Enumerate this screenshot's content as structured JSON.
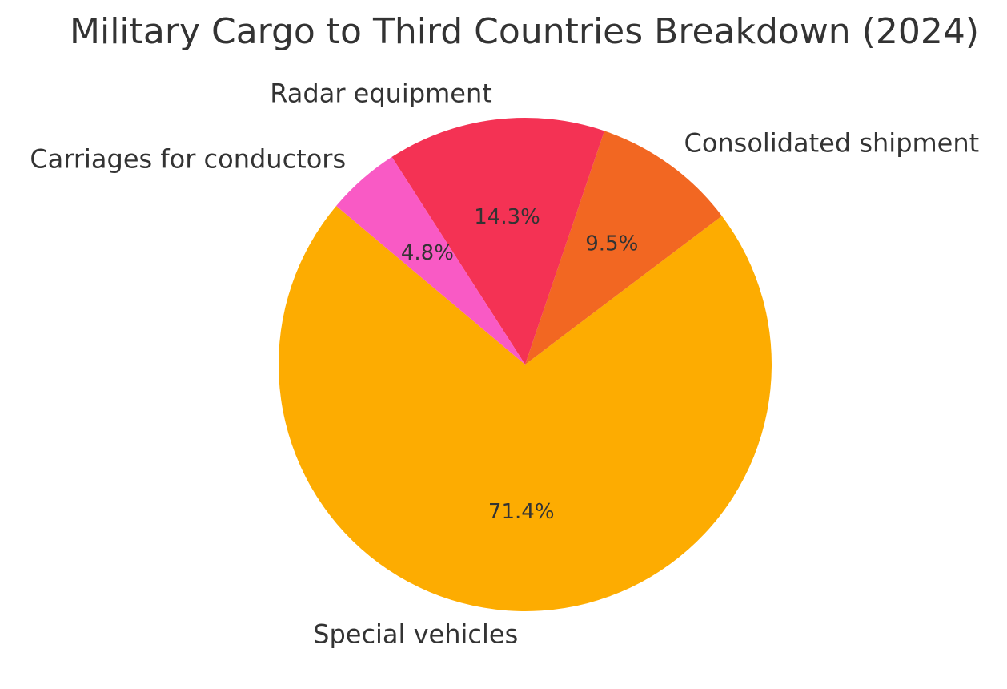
{
  "chart_data": {
    "type": "pie",
    "title": "Military Cargo to Third Countries Breakdown (2024)",
    "slices": [
      {
        "label": "Special vehicles",
        "value": 71.4,
        "pct_label": "71.4%",
        "color": "#FDAC01"
      },
      {
        "label": "Consolidated shipment",
        "value": 9.5,
        "pct_label": "9.5%",
        "color": "#F26722"
      },
      {
        "label": "Radar equipment",
        "value": 14.3,
        "pct_label": "14.3%",
        "color": "#F43254"
      },
      {
        "label": "Carriages for conductors",
        "value": 4.8,
        "pct_label": "4.8%",
        "color": "#F95AC5"
      }
    ],
    "legend": "none"
  }
}
